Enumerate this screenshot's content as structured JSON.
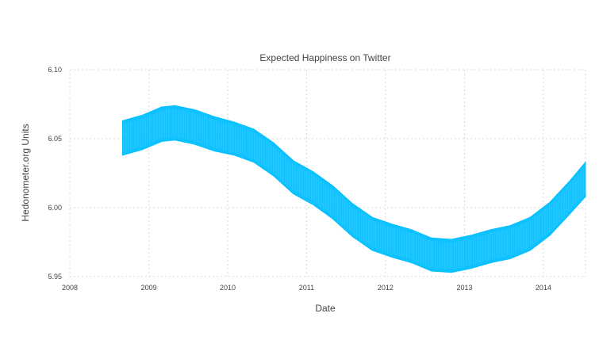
{
  "chart_data": {
    "type": "area",
    "title": "Expected Happiness on Twitter",
    "xlabel": "Date",
    "ylabel": "Hedonometer.org Units",
    "xlim": [
      "2008-01-01",
      "2014-07-15"
    ],
    "ylim": [
      5.95,
      6.1
    ],
    "x_ticks": [
      "2008",
      "2009",
      "2010",
      "2011",
      "2012",
      "2013",
      "2014"
    ],
    "y_ticks": [
      "5.95",
      "6.00",
      "6.05",
      "6.10"
    ],
    "grid": true,
    "band_color": "#00bfff",
    "series": [
      {
        "x": [
          "2008-09-01",
          "2008-12-01",
          "2009-03-01",
          "2009-05-01",
          "2009-08-01",
          "2009-11-01",
          "2010-02-01",
          "2010-05-01",
          "2010-08-01",
          "2010-11-01",
          "2011-02-01",
          "2011-05-01",
          "2011-08-01",
          "2011-11-01",
          "2012-02-01",
          "2012-05-01",
          "2012-08-01",
          "2012-11-01",
          "2013-02-01",
          "2013-05-01",
          "2013-08-01",
          "2013-11-01",
          "2014-02-01",
          "2014-05-01",
          "2014-07-15"
        ],
        "upper": [
          6.063,
          6.067,
          6.073,
          6.074,
          6.071,
          6.066,
          6.062,
          6.057,
          6.047,
          6.034,
          6.026,
          6.016,
          6.003,
          5.993,
          5.988,
          5.984,
          5.978,
          5.977,
          5.98,
          5.984,
          5.987,
          5.993,
          6.004,
          6.019,
          6.033
        ],
        "lower": [
          6.038,
          6.042,
          6.048,
          6.049,
          6.046,
          6.041,
          6.038,
          6.033,
          6.023,
          6.01,
          6.002,
          5.992,
          5.979,
          5.969,
          5.964,
          5.96,
          5.954,
          5.953,
          5.956,
          5.96,
          5.963,
          5.969,
          5.98,
          5.995,
          6.008
        ]
      }
    ]
  }
}
